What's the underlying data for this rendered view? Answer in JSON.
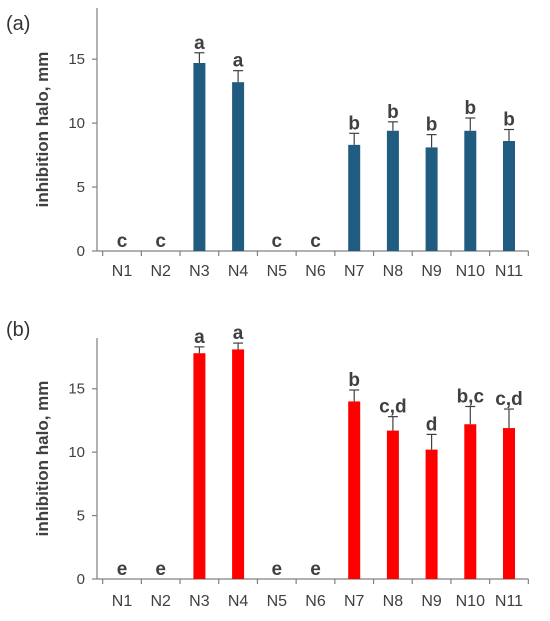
{
  "chart_data": [
    {
      "type": "bar",
      "panel_label": "(a)",
      "ylabel": "inhibition halo, mm",
      "xlabel": "",
      "categories": [
        "N1",
        "N2",
        "N3",
        "N4",
        "N5",
        "N6",
        "N7",
        "N8",
        "N9",
        "N10",
        "N11"
      ],
      "values": [
        0,
        0,
        14.7,
        13.2,
        0,
        0,
        8.3,
        9.4,
        8.1,
        9.4,
        8.6
      ],
      "errors": [
        0,
        0,
        0.8,
        0.9,
        0,
        0,
        0.9,
        0.7,
        1.0,
        1.0,
        0.9
      ],
      "significance": [
        "c",
        "c",
        "a",
        "a",
        "c",
        "c",
        "b",
        "b",
        "b",
        "b",
        "b"
      ],
      "ylim": [
        0,
        19
      ],
      "yticks": [
        0,
        5,
        10,
        15
      ],
      "grid": false,
      "color": "#1f5c80"
    },
    {
      "type": "bar",
      "panel_label": "(b)",
      "ylabel": "inhibition halo, mm",
      "xlabel": "",
      "categories": [
        "N1",
        "N2",
        "N3",
        "N4",
        "N5",
        "N6",
        "N7",
        "N8",
        "N9",
        "N10",
        "N11"
      ],
      "values": [
        0,
        0,
        17.8,
        18.1,
        0,
        0,
        14.0,
        11.7,
        10.2,
        12.2,
        11.9
      ],
      "errors": [
        0,
        0,
        0.5,
        0.5,
        0,
        0,
        0.9,
        1.1,
        1.2,
        1.4,
        1.5
      ],
      "significance": [
        "e",
        "e",
        "a",
        "a",
        "e",
        "e",
        "b",
        "c,d",
        "d",
        "b,c",
        "c,d"
      ],
      "ylim": [
        0,
        19
      ],
      "yticks": [
        0,
        5,
        10,
        15
      ],
      "grid": false,
      "color": "#ff0000"
    }
  ]
}
